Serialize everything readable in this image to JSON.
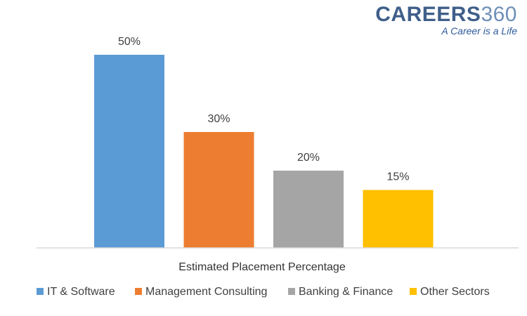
{
  "logo": {
    "word": "CAREERS",
    "number": "360",
    "tagline": "A Career is a Life"
  },
  "chart_data": {
    "type": "bar",
    "categories": [
      "Estimated Placement Percentage"
    ],
    "series": [
      {
        "name": "IT & Software",
        "values": [
          50
        ],
        "label": "50%",
        "color": "#5b9bd5"
      },
      {
        "name": "Management Consulting",
        "values": [
          30
        ],
        "label": "30%",
        "color": "#ed7d31"
      },
      {
        "name": "Banking & Finance",
        "values": [
          20
        ],
        "label": "20%",
        "color": "#a5a5a5"
      },
      {
        "name": "Other Sectors",
        "values": [
          15
        ],
        "label": "15%",
        "color": "#ffc000"
      }
    ],
    "title": "",
    "xlabel": "",
    "ylabel": "",
    "ylim": [
      0,
      50
    ],
    "grid": false,
    "legend": "bottom",
    "data_labels": true
  }
}
